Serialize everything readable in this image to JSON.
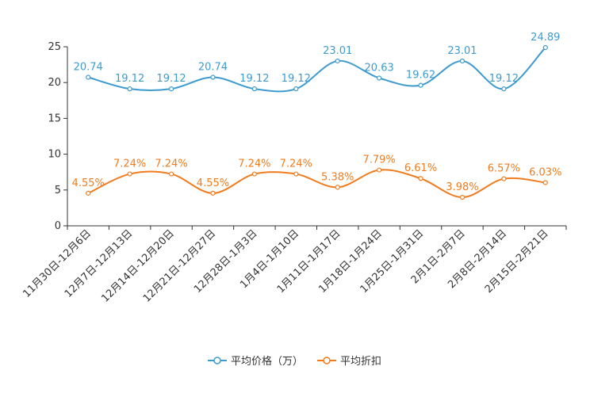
{
  "chart_data": {
    "type": "line",
    "categories": [
      "11月30日-12月6日",
      "12月7日-12月13日",
      "12月14日-12月20日",
      "12月21日-12月27日",
      "12月28日-1月3日",
      "1月4日-1月10日",
      "1月11日-1月17日",
      "1月18日-1月24日",
      "1月25日-1月31日",
      "2月1日-2月7日",
      "2月8日-2月14日",
      "2月15日-2月21日"
    ],
    "ylim": [
      0,
      25
    ],
    "yticks": [
      "0",
      "5",
      "10",
      "15",
      "20",
      "25"
    ],
    "series": [
      {
        "name": "平均价格（万）",
        "color": "#3d9bd0",
        "values": [
          20.74,
          19.12,
          19.12,
          20.74,
          19.12,
          19.12,
          23.01,
          20.63,
          19.62,
          23.01,
          19.12,
          24.89
        ],
        "labels": [
          "20.74",
          "19.12",
          "19.12",
          "20.74",
          "19.12",
          "19.12",
          "23.01",
          "20.63",
          "19.62",
          "23.01",
          "19.12",
          "24.89"
        ]
      },
      {
        "name": "平均折扣",
        "color": "#f07c1e",
        "values": [
          4.55,
          7.24,
          7.24,
          4.55,
          7.24,
          7.24,
          5.38,
          7.79,
          6.61,
          3.98,
          6.57,
          6.03
        ],
        "labels": [
          "4.55%",
          "7.24%",
          "7.24%",
          "4.55%",
          "7.24%",
          "7.24%",
          "5.38%",
          "7.79%",
          "6.61%",
          "3.98%",
          "6.57%",
          "6.03%"
        ]
      }
    ],
    "legend": "bottom-center"
  }
}
